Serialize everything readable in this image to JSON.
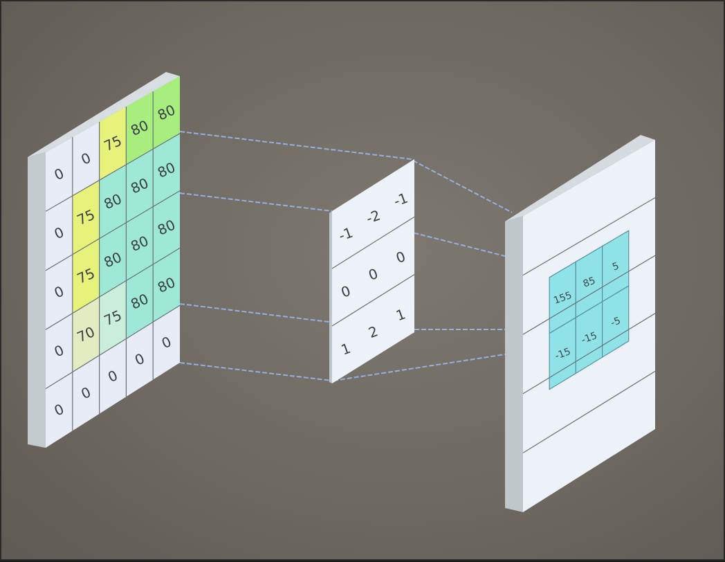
{
  "input_grid": {
    "rows": [
      [
        "0",
        "0",
        "75",
        "80",
        "80"
      ],
      [
        "0",
        "75",
        "80",
        "80",
        "80"
      ],
      [
        "0",
        "75",
        "80",
        "80",
        "80"
      ],
      [
        "0",
        "70",
        "75",
        "80",
        "80"
      ],
      [
        "0",
        "0",
        "0",
        "0",
        "0"
      ]
    ],
    "highlight_yellow": "#e6f27a",
    "highlight_green": "#a8ee7e",
    "highlight_teal": "#9ee8d6",
    "cell_base": "#e8ecf6"
  },
  "kernel_grid": {
    "rows": [
      [
        "-1",
        "-2",
        "-1"
      ],
      [
        "0",
        "0",
        "0"
      ],
      [
        "1",
        "2",
        "1"
      ]
    ]
  },
  "output_grid": {
    "rows": [
      [
        "155",
        "85",
        "5"
      ],
      [
        "-15",
        "-15",
        "-5"
      ]
    ],
    "cell_color": "#8fe3e6"
  },
  "colors": {
    "connector": "#9bb7ee",
    "panel": "#edf1f8",
    "panel_edge": "#b9c2c6",
    "grid_line": "#6a7078"
  }
}
